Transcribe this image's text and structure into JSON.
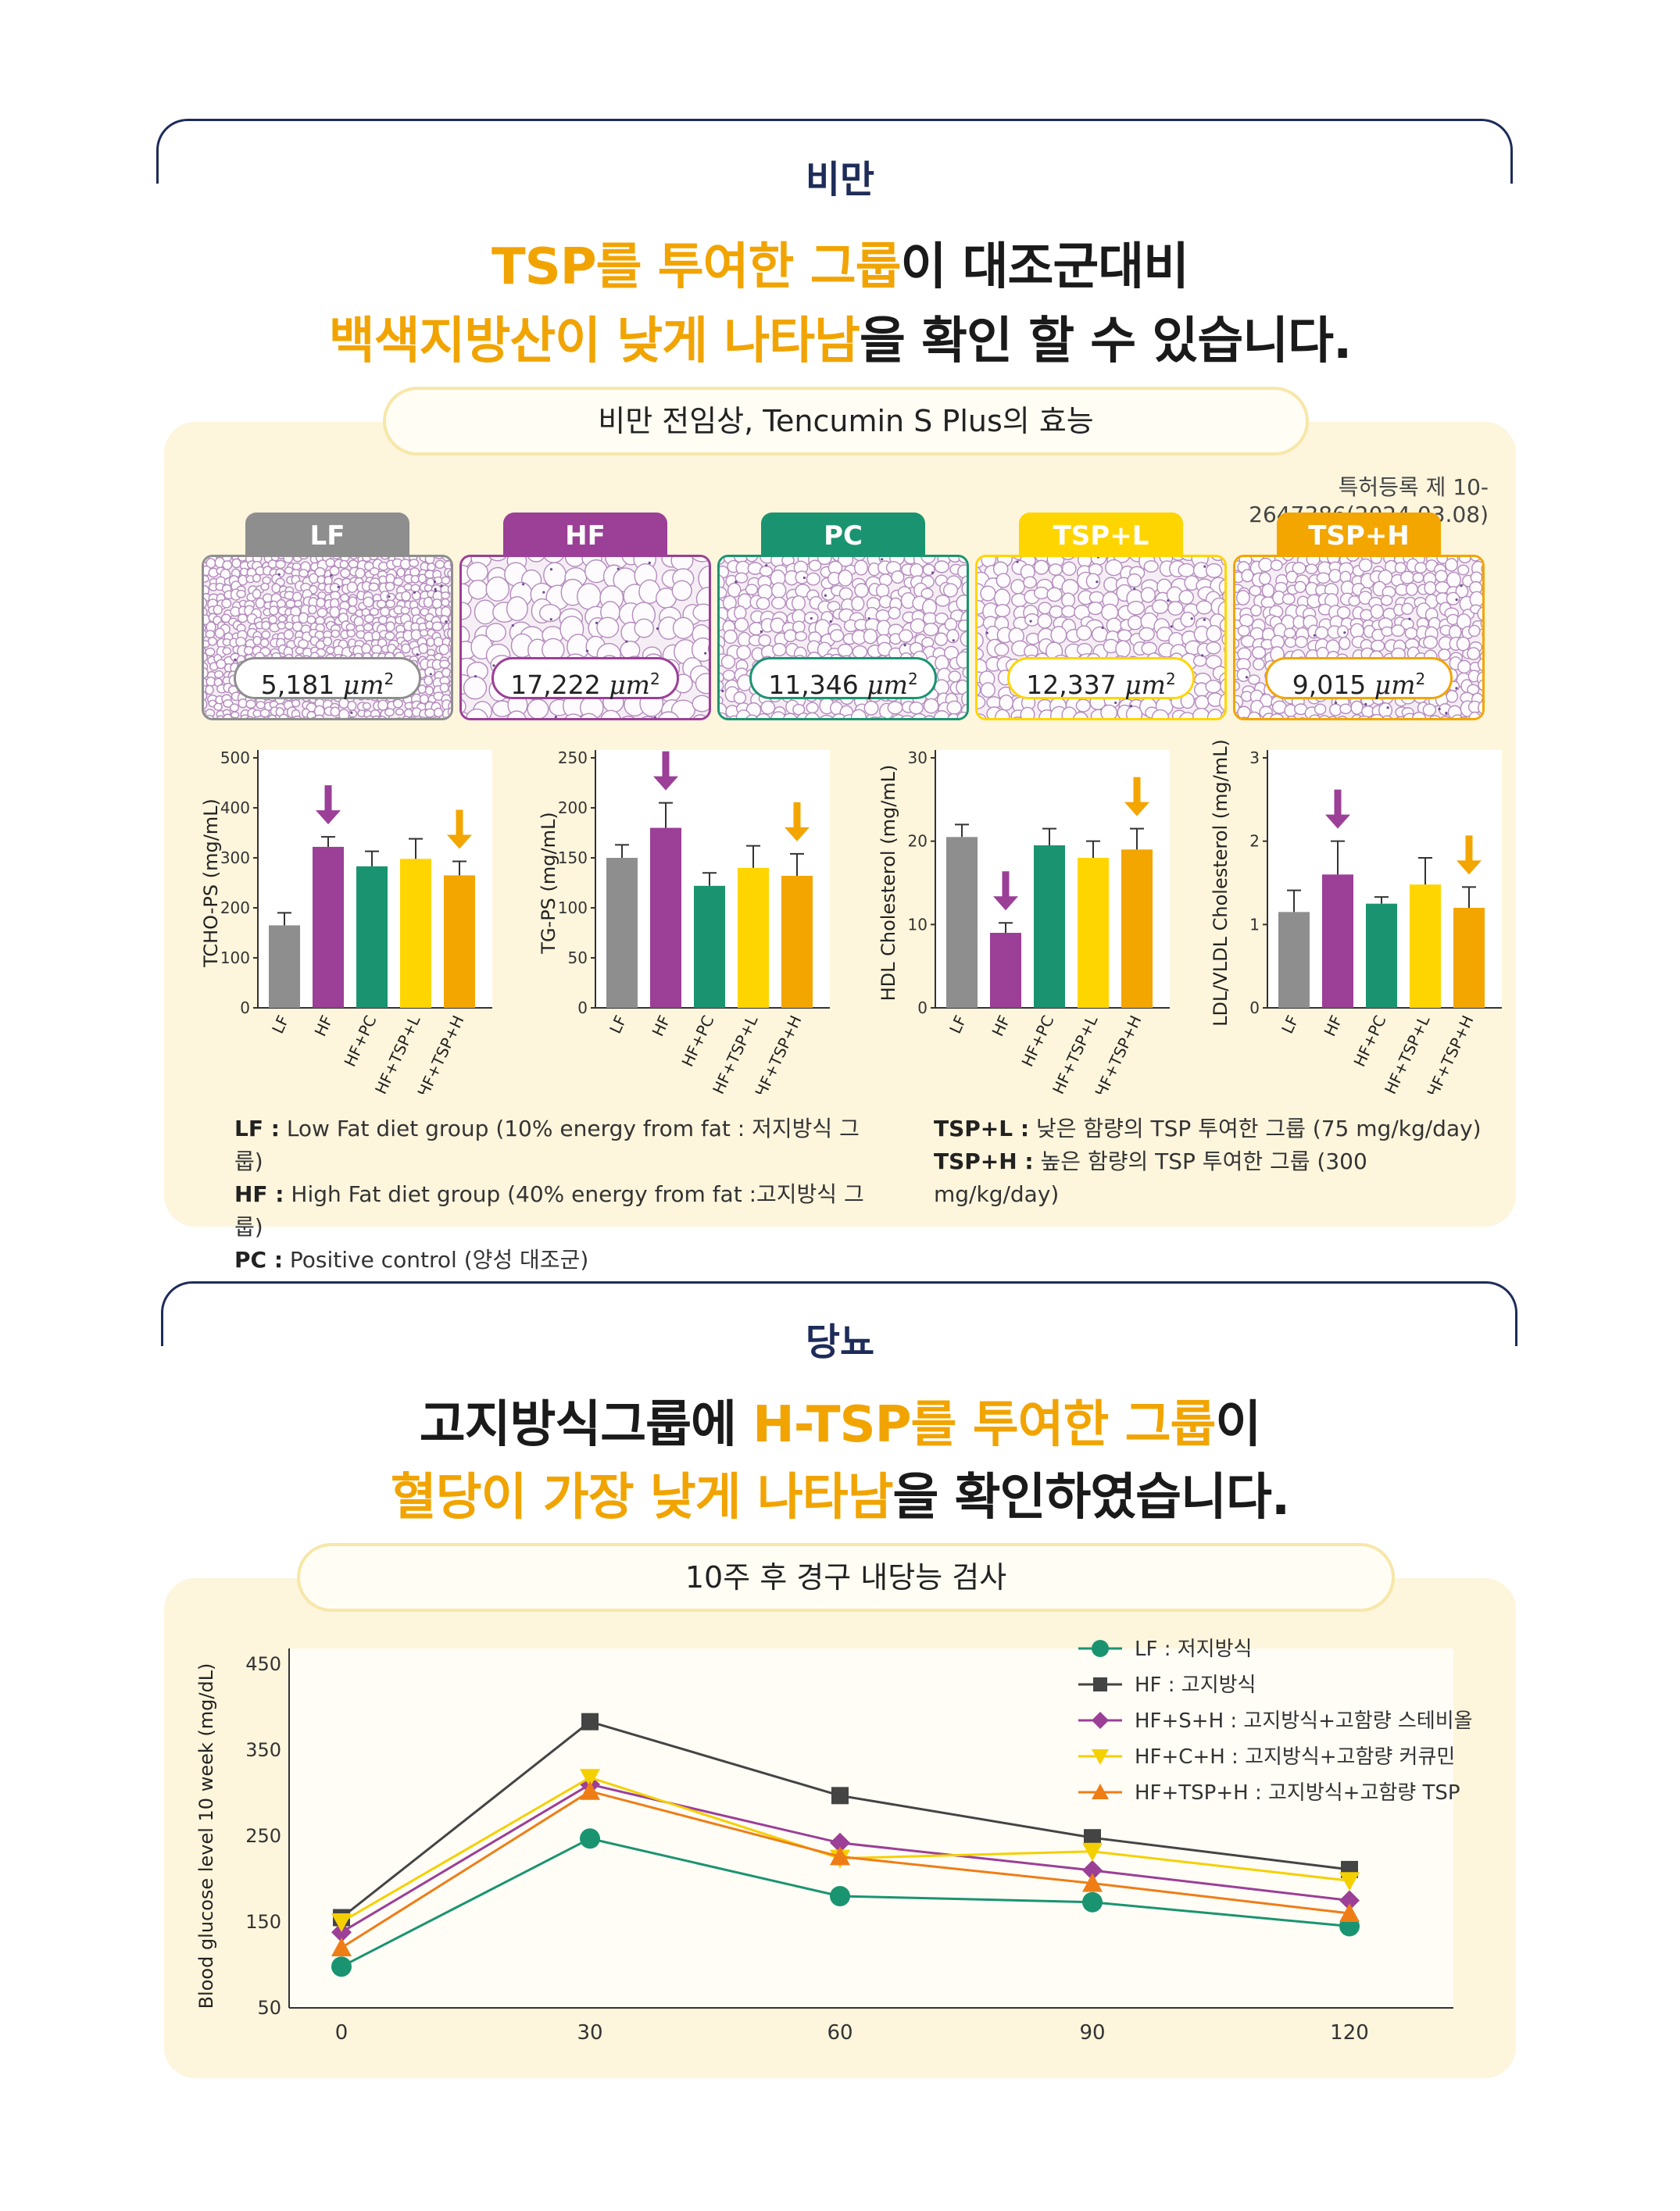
{
  "obesity": {
    "section_label": "비만",
    "headline_line1_hl": "TSP를 투여한 그룹",
    "headline_line1_rest": "이 대조군대비",
    "headline_line2_hl": "백색지방산이 낮게 나타남",
    "headline_line2_rest": "을 확인 할 수 있습니다.",
    "pill_title": "비만 전임상, Tencumin S Plus의 효능",
    "patent": "특허등록 제 10-2647386(2024.03.08)",
    "groups": [
      {
        "label": "LF",
        "area": "5,181",
        "color": "#8e8e8e"
      },
      {
        "label": "HF",
        "area": "17,222",
        "color": "#9b3f97"
      },
      {
        "label": "PC",
        "area": "11,346",
        "color": "#1a9470"
      },
      {
        "label": "TSP+L",
        "area": "12,337",
        "color": "#ffd500"
      },
      {
        "label": "TSP+H",
        "area": "9,015",
        "color": "#f3a500"
      }
    ],
    "area_unit": "μm",
    "area_unit_sup": "2",
    "legend_left": [
      {
        "key": "LF :",
        "text": " Low Fat diet group (10% energy from fat : 저지방식 그룹)"
      },
      {
        "key": "HF :",
        "text": " High Fat diet group (40% energy from fat :고지방식 그룹)"
      },
      {
        "key": "PC :",
        "text": " Positive control (양성 대조군)"
      }
    ],
    "legend_right": [
      {
        "key": "TSP+L :",
        "text": " 낮은 함량의 TSP 투여한 그룹 (75 mg/kg/day)"
      },
      {
        "key": "TSP+H :",
        "text": " 높은 함량의 TSP 투여한 그룹 (300 mg/kg/day)"
      }
    ]
  },
  "chart_data": [
    {
      "type": "bar",
      "ylabel": "TCHO-PS (mg/mL)",
      "categories": [
        "LF",
        "HF",
        "HF+PC",
        "HF+TSP+L",
        "HF+TSP+H"
      ],
      "values": [
        165,
        322,
        283,
        298,
        265
      ],
      "errors": [
        25,
        20,
        30,
        40,
        28
      ],
      "ylim": [
        0,
        500
      ],
      "yticks": [
        0,
        100,
        200,
        300,
        400,
        500
      ],
      "arrows": [
        1,
        4
      ]
    },
    {
      "type": "bar",
      "ylabel": "TG-PS (mg/mL)",
      "categories": [
        "LF",
        "HF",
        "HF+PC",
        "HF+TSP+L",
        "HF+TSP+H"
      ],
      "values": [
        150,
        180,
        122,
        140,
        132
      ],
      "errors": [
        13,
        25,
        13,
        22,
        22
      ],
      "ylim": [
        0,
        250
      ],
      "yticks": [
        0,
        50,
        100,
        150,
        200,
        250
      ],
      "arrows": [
        1,
        4
      ]
    },
    {
      "type": "bar",
      "ylabel": "HDL Cholesterol (mg/mL)",
      "categories": [
        "LF",
        "HF",
        "HF+PC",
        "HF+TSP+L",
        "HF+TSP+H"
      ],
      "values": [
        20.5,
        9,
        19.5,
        18,
        19
      ],
      "errors": [
        1.5,
        1.2,
        2,
        2,
        2.5
      ],
      "ylim": [
        0,
        30
      ],
      "yticks": [
        0,
        10,
        20,
        30
      ],
      "arrows": [
        1,
        4
      ]
    },
    {
      "type": "bar",
      "ylabel": "LDL/VLDL Cholesterol (mg/mL)",
      "categories": [
        "LF",
        "HF",
        "HF+PC",
        "HF+TSP+L",
        "HF+TSP+H"
      ],
      "values": [
        1.15,
        1.6,
        1.25,
        1.48,
        1.2
      ],
      "errors": [
        0.26,
        0.4,
        0.08,
        0.32,
        0.25
      ],
      "ylim": [
        0,
        3
      ],
      "yticks": [
        0,
        1,
        2,
        3
      ],
      "arrows": [
        1,
        4
      ]
    },
    {
      "type": "line",
      "ylabel": "Blood glucose level 10 week (mg/dL)",
      "x": [
        0,
        30,
        60,
        90,
        120
      ],
      "ylim": [
        50,
        450
      ],
      "yticks": [
        50,
        150,
        250,
        350,
        450
      ],
      "series": [
        {
          "name": "LF : 저지방식",
          "marker": "circle",
          "color": "#1a9470",
          "values": [
            98,
            247,
            180,
            173,
            145
          ]
        },
        {
          "name": "HF : 고지방식",
          "marker": "square",
          "color": "#444444",
          "values": [
            155,
            383,
            297,
            248,
            211
          ]
        },
        {
          "name": "HF+S+H : 고지방식+고함량 스테비올",
          "marker": "diamond",
          "color": "#9b3f97",
          "values": [
            138,
            310,
            242,
            210,
            175
          ]
        },
        {
          "name": "HF+C+H : 고지방식+고함량 커큐민",
          "marker": "triangle-down",
          "color": "#f5d000",
          "values": [
            150,
            318,
            224,
            232,
            198
          ]
        },
        {
          "name": "HF+TSP+H : 고지방식+고함량 TSP",
          "marker": "triangle-up",
          "color": "#ef7d16",
          "values": [
            120,
            302,
            226,
            195,
            160
          ]
        }
      ]
    }
  ],
  "diabetes": {
    "section_label": "당뇨",
    "headline_line1_pre": "고지방식그룹에 ",
    "headline_line1_hl": "H-TSP를 투여한 그룹",
    "headline_line1_rest": "이",
    "headline_line2_hl": "혈당이 가장 낮게 나타남",
    "headline_line2_rest": "을 확인하였습니다.",
    "pill_title": "10주 후 경구 내당능 검사"
  }
}
